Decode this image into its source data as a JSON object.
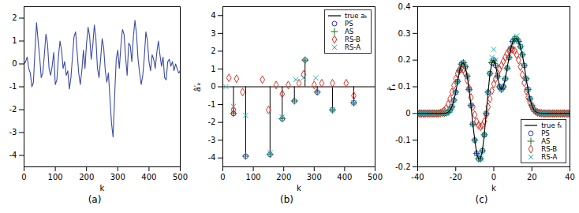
{
  "chart_data": [
    {
      "type": "line",
      "title": "(a)",
      "x_label": "k",
      "color": "#3b4ba6",
      "xlim": [
        0,
        500
      ],
      "xticks": [
        0,
        100,
        200,
        300,
        400,
        500
      ],
      "ylim": [
        -4.5,
        2.5
      ],
      "yticks": [
        -4,
        -3,
        -2,
        -1,
        0,
        1,
        2
      ],
      "x": [
        0,
        5,
        10,
        15,
        20,
        25,
        30,
        35,
        40,
        45,
        50,
        55,
        60,
        65,
        70,
        75,
        80,
        85,
        90,
        95,
        100,
        105,
        110,
        115,
        120,
        125,
        130,
        135,
        140,
        145,
        150,
        155,
        160,
        165,
        170,
        175,
        180,
        185,
        190,
        195,
        200,
        205,
        210,
        215,
        220,
        225,
        230,
        235,
        240,
        245,
        250,
        255,
        260,
        265,
        270,
        275,
        280,
        285,
        290,
        295,
        300,
        305,
        310,
        315,
        320,
        325,
        330,
        335,
        340,
        345,
        350,
        355,
        360,
        365,
        370,
        375,
        380,
        385,
        390,
        395,
        400,
        405,
        410,
        415,
        420,
        425,
        430,
        435,
        440,
        445,
        450,
        455,
        460,
        465,
        470,
        475,
        480,
        485,
        490,
        495,
        500
      ],
      "values": [
        0,
        0.1,
        0.3,
        -0.2,
        -0.4,
        -1.0,
        -0.8,
        0.6,
        1.8,
        1.0,
        0.3,
        -0.6,
        -0.4,
        0.4,
        1.3,
        0.9,
        -0.2,
        -0.5,
        -0.1,
        0.5,
        -0.9,
        -0.7,
        0.3,
        1.0,
        0.6,
        -0.2,
        0.1,
        -0.5,
        -0.3,
        -1.1,
        -0.6,
        0.3,
        1.2,
        1.4,
        0.5,
        -0.4,
        -0.9,
        -0.3,
        0.6,
        -0.2,
        0.9,
        1.6,
        1.2,
        0.2,
        0.8,
        1.7,
        1.1,
        -0.2,
        -0.6,
        0.2,
        1.1,
        0.7,
        -0.3,
        -0.8,
        -0.4,
        -1.5,
        -2.6,
        -3.2,
        -1.4,
        0.2,
        0.6,
        -0.2,
        0.8,
        1.5,
        1.3,
        0.3,
        -0.5,
        0.9,
        0.8,
        0.1,
        1.2,
        1.9,
        1.3,
        0.2,
        -0.4,
        -0.9,
        -0.5,
        0.3,
        1.4,
        1.0,
        0.1,
        -0.3,
        0.4,
        0.2,
        -0.2,
        0.5,
        1.0,
        0.4,
        -0.1,
        0.3,
        -0.6,
        -0.7,
        0.1,
        0.2,
        -0.1,
        0.1,
        -0.3,
        0.0,
        -0.2,
        -0.4,
        -0.3
      ]
    },
    {
      "type": "stem",
      "title": "(b)",
      "x_label": "k",
      "y_label": "â′ₖ",
      "legend": "upper right",
      "xlim": [
        0,
        500
      ],
      "xticks": [
        0,
        100,
        200,
        300,
        400,
        500
      ],
      "ylim": [
        -4.5,
        4.5
      ],
      "yticks": [
        -4,
        -3,
        -2,
        -1,
        0,
        1,
        2,
        3,
        4
      ],
      "series": [
        {
          "name": "true aₖ",
          "type": "stem",
          "color": "#000000",
          "x": [
            35,
            75,
            155,
            195,
            235,
            270,
            310,
            360,
            430
          ],
          "values": [
            -1.5,
            -3.9,
            -3.8,
            -1.8,
            -0.8,
            1.5,
            -0.3,
            -1.3,
            -0.9
          ]
        },
        {
          "name": "PS",
          "type": "scatter",
          "marker": "circle",
          "color": "#3333cc",
          "x": [
            35,
            75,
            155,
            195,
            235,
            270,
            310,
            360,
            430
          ],
          "values": [
            -1.5,
            -3.9,
            -3.8,
            -1.8,
            -0.8,
            1.5,
            -0.3,
            -1.3,
            -0.9
          ]
        },
        {
          "name": "AS",
          "type": "scatter",
          "marker": "plus",
          "color": "#1a6e1a",
          "x": [
            35,
            75,
            155,
            195,
            235,
            270,
            310,
            360,
            430
          ],
          "values": [
            -1.5,
            -3.9,
            -3.8,
            -1.8,
            -0.8,
            1.5,
            -0.3,
            -1.3,
            -0.9
          ]
        },
        {
          "name": "RS-B",
          "type": "scatter",
          "marker": "diamond",
          "color": "#d93025",
          "x": [
            20,
            35,
            45,
            65,
            130,
            150,
            175,
            195,
            215,
            250,
            265,
            300,
            325,
            360,
            405,
            430
          ],
          "values": [
            0.5,
            -1.3,
            0.45,
            -0.3,
            0.4,
            -1.3,
            0.1,
            -0.4,
            0.1,
            0.2,
            0.7,
            0.1,
            0.2,
            0.2,
            0.2,
            -0.5
          ]
        },
        {
          "name": "RS-A",
          "type": "scatter",
          "marker": "times",
          "color": "#26b5b5",
          "x": [
            10,
            35,
            75,
            155,
            195,
            240,
            265,
            305,
            360,
            430
          ],
          "values": [
            0.0,
            -1.1,
            -1.6,
            -3.7,
            -1.7,
            0.4,
            0.5,
            0.5,
            -1.3,
            -0.9
          ]
        }
      ]
    },
    {
      "type": "line",
      "title": "(c)",
      "x_label": "k",
      "y_label": "f̂′ₖ",
      "legend": "lower right",
      "xlim": [
        -40,
        40
      ],
      "xticks": [
        -40,
        -20,
        0,
        20,
        40
      ],
      "ylim": [
        -0.2,
        0.4
      ],
      "yticks": [
        -0.2,
        -0.1,
        0,
        0.1,
        0.2,
        0.3,
        0.4
      ],
      "x": [
        -40,
        -39,
        -38,
        -37,
        -36,
        -35,
        -34,
        -33,
        -32,
        -31,
        -30,
        -29,
        -28,
        -27,
        -26,
        -25,
        -24,
        -23,
        -22,
        -21,
        -20,
        -19,
        -18,
        -17,
        -16,
        -15,
        -14,
        -13,
        -12,
        -11,
        -10,
        -9,
        -8,
        -7,
        -6,
        -5,
        -4,
        -3,
        -2,
        -1,
        0,
        1,
        2,
        3,
        4,
        5,
        6,
        7,
        8,
        9,
        10,
        11,
        12,
        13,
        14,
        15,
        16,
        17,
        18,
        19,
        20,
        21,
        22,
        23,
        24,
        25,
        26,
        27,
        28,
        29,
        30,
        31,
        32,
        33,
        34,
        35,
        36,
        37,
        38,
        39,
        40
      ],
      "series": [
        {
          "name": "PS",
          "type": "scatter",
          "marker": "circle",
          "color": "#3333cc",
          "values": [
            0,
            0,
            0,
            0,
            0,
            0,
            0,
            0,
            0,
            0,
            0,
            0,
            0,
            0,
            0,
            0.002,
            0.005,
            0.012,
            0.025,
            0.05,
            0.08,
            0.12,
            0.16,
            0.185,
            0.19,
            0.175,
            0.14,
            0.09,
            0.03,
            -0.04,
            -0.1,
            -0.15,
            -0.17,
            -0.17,
            -0.14,
            -0.08,
            0,
            0.08,
            0.15,
            0.19,
            0.2,
            0.18,
            0.14,
            0.1,
            0.09,
            0.1,
            0.13,
            0.17,
            0.21,
            0.245,
            0.27,
            0.28,
            0.28,
            0.27,
            0.25,
            0.22,
            0.18,
            0.13,
            0.09,
            0.055,
            0.03,
            0.015,
            0.007,
            0.003,
            0.001,
            0,
            0,
            0,
            0,
            0,
            0,
            0,
            0,
            0,
            0,
            0,
            0,
            0,
            0,
            0,
            0
          ]
        },
        {
          "name": "AS",
          "type": "scatter",
          "marker": "plus",
          "color": "#1a6e1a",
          "values": [
            0,
            0,
            0,
            0,
            0,
            0,
            0,
            0,
            0,
            0,
            0,
            0,
            0,
            0,
            0,
            0.002,
            0.005,
            0.012,
            0.025,
            0.05,
            0.08,
            0.12,
            0.16,
            0.185,
            0.19,
            0.175,
            0.14,
            0.09,
            0.03,
            -0.04,
            -0.1,
            -0.15,
            -0.17,
            -0.17,
            -0.14,
            -0.08,
            0,
            0.08,
            0.15,
            0.19,
            0.2,
            0.18,
            0.14,
            0.1,
            0.09,
            0.1,
            0.13,
            0.17,
            0.21,
            0.245,
            0.27,
            0.28,
            0.28,
            0.27,
            0.25,
            0.22,
            0.18,
            0.13,
            0.09,
            0.055,
            0.03,
            0.015,
            0.007,
            0.003,
            0.001,
            0,
            0,
            0,
            0,
            0,
            0,
            0,
            0,
            0,
            0,
            0,
            0,
            0,
            0,
            0,
            0
          ]
        },
        {
          "name": "RS-B",
          "type": "scatter",
          "marker": "diamond",
          "color": "#d93025",
          "values": [
            0,
            0,
            0,
            0,
            0,
            0,
            0,
            0,
            0,
            0,
            0,
            0,
            0.002,
            0.005,
            0.01,
            0.02,
            0.035,
            0.055,
            0.08,
            0.105,
            0.13,
            0.15,
            0.165,
            0.17,
            0.165,
            0.15,
            0.125,
            0.095,
            0.06,
            0.025,
            -0.005,
            -0.03,
            -0.045,
            -0.05,
            -0.045,
            -0.03,
            -0.005,
            0.025,
            0.055,
            0.085,
            0.11,
            0.13,
            0.15,
            0.165,
            0.18,
            0.195,
            0.21,
            0.225,
            0.235,
            0.24,
            0.24,
            0.235,
            0.22,
            0.2,
            0.175,
            0.145,
            0.115,
            0.085,
            0.06,
            0.04,
            0.025,
            0.015,
            0.008,
            0.004,
            0.002,
            0.001,
            0,
            0,
            0,
            0,
            0,
            0,
            0,
            0,
            0,
            0,
            0,
            0,
            0,
            0,
            0
          ]
        },
        {
          "name": "RS-A",
          "type": "scatter",
          "marker": "times",
          "color": "#26b5b5",
          "values": [
            0,
            0,
            0,
            0,
            0,
            0,
            0,
            0,
            0,
            0,
            0,
            0,
            0,
            0,
            0,
            0.002,
            0.005,
            0.012,
            0.025,
            0.05,
            0.08,
            0.12,
            0.16,
            0.185,
            0.19,
            0.175,
            0.14,
            0.09,
            0.03,
            -0.04,
            -0.1,
            -0.15,
            -0.16,
            -0.17,
            -0.14,
            -0.08,
            0,
            0.08,
            0.15,
            0.21,
            0.24,
            0.2,
            0.14,
            0.1,
            0.09,
            0.1,
            0.13,
            0.17,
            0.21,
            0.245,
            0.27,
            0.28,
            0.29,
            0.27,
            0.25,
            0.22,
            0.18,
            0.13,
            0.09,
            0.055,
            0.03,
            0.015,
            0.007,
            0.003,
            0.001,
            0,
            0,
            0,
            0,
            0,
            0,
            0,
            0,
            0,
            0,
            0,
            0,
            0,
            0,
            0,
            0
          ]
        },
        {
          "name": "true fₖ",
          "type": "line",
          "color": "#000000",
          "values": [
            0,
            0,
            0,
            0,
            0,
            0,
            0,
            0,
            0,
            0,
            0,
            0,
            0,
            0,
            0,
            0.002,
            0.005,
            0.012,
            0.025,
            0.05,
            0.08,
            0.12,
            0.16,
            0.185,
            0.19,
            0.175,
            0.14,
            0.09,
            0.03,
            -0.04,
            -0.1,
            -0.15,
            -0.17,
            -0.17,
            -0.14,
            -0.08,
            0,
            0.08,
            0.15,
            0.19,
            0.2,
            0.18,
            0.14,
            0.1,
            0.09,
            0.1,
            0.13,
            0.17,
            0.21,
            0.245,
            0.27,
            0.28,
            0.28,
            0.27,
            0.25,
            0.22,
            0.18,
            0.13,
            0.09,
            0.055,
            0.03,
            0.015,
            0.007,
            0.003,
            0.001,
            0,
            0,
            0,
            0,
            0,
            0,
            0,
            0,
            0,
            0,
            0,
            0,
            0,
            0,
            0,
            0
          ]
        }
      ]
    }
  ]
}
